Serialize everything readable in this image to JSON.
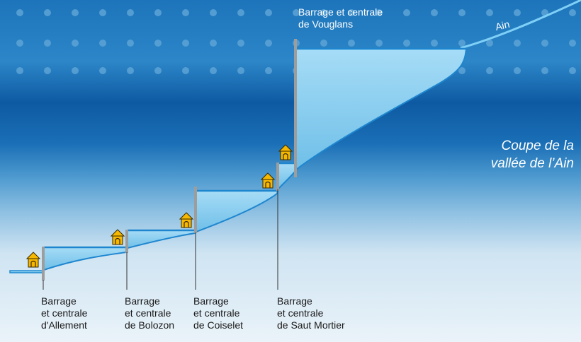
{
  "caption": {
    "line1": "Coupe de la",
    "line2": "vallée de l’Ain"
  },
  "river_label": "Ain",
  "dams": [
    {
      "key": "allement",
      "line1": "Barrage",
      "line2": "et centrale",
      "line3": "d'Allement"
    },
    {
      "key": "bolozon",
      "line1": "Barrage",
      "line2": "et centrale",
      "line3": "de Bolozon"
    },
    {
      "key": "coiselet",
      "line1": "Barrage",
      "line2": "et centrale",
      "line3": "de Coiselet"
    },
    {
      "key": "saut-mortier",
      "line1": "Barrage",
      "line2": "et centrale",
      "line3": "de Saut Mortier"
    },
    {
      "key": "vouglans",
      "line1": "Barrage et centrale",
      "line2": "de Vouglans"
    }
  ],
  "colors": {
    "sky_top": "#1b6fb6",
    "sky_band": "#0b4f96",
    "sky_light": "#e2eef6",
    "reservoir": "#8fd0f0",
    "water_line": "#1f8ad0",
    "dam_wall": "#9a9a9a",
    "house": "#f6b800",
    "dots": "#5da3d6"
  }
}
